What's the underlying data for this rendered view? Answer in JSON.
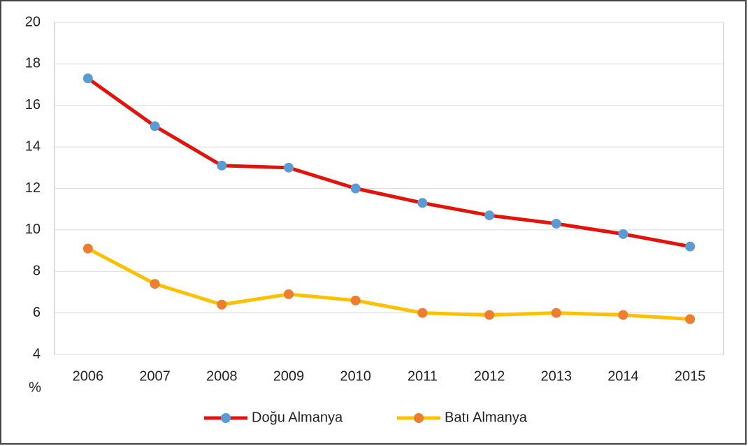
{
  "chart_data": {
    "type": "line",
    "categories": [
      "2006",
      "2007",
      "2008",
      "2009",
      "2010",
      "2011",
      "2012",
      "2013",
      "2014",
      "2015"
    ],
    "series": [
      {
        "name": "Doğu Almanya",
        "color": "#e3120b",
        "marker_color": "#5b9bd5",
        "values": [
          17.3,
          15.0,
          13.1,
          13.0,
          12.0,
          11.3,
          10.7,
          10.3,
          9.8,
          9.2
        ]
      },
      {
        "name": "Batı Almanya",
        "color": "#ffc000",
        "marker_color": "#ed7d31",
        "values": [
          9.1,
          7.4,
          6.4,
          6.9,
          6.6,
          6.0,
          5.9,
          6.0,
          5.9,
          5.7
        ]
      }
    ],
    "y_label": "%",
    "ylim": [
      4,
      20
    ],
    "yticks": [
      4,
      6,
      8,
      10,
      12,
      14,
      16,
      18,
      20
    ],
    "grid": true,
    "legend": "bottom"
  }
}
